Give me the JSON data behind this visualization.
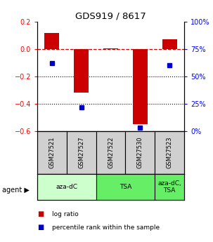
{
  "title": "GDS919 / 8617",
  "samples": [
    "GSM27521",
    "GSM27527",
    "GSM27522",
    "GSM27530",
    "GSM27523"
  ],
  "log_ratios": [
    0.12,
    -0.32,
    0.003,
    -0.55,
    0.07
  ],
  "percentile_rank_values": [
    0.62,
    0.22,
    null,
    0.03,
    0.6
  ],
  "left_ylim": [
    -0.6,
    0.2
  ],
  "right_ylim": [
    0,
    100
  ],
  "left_yticks": [
    -0.6,
    -0.4,
    -0.2,
    0.0,
    0.2
  ],
  "right_yticks": [
    0,
    25,
    50,
    75,
    100
  ],
  "bar_color": "#cc0000",
  "dot_color": "#0000cc",
  "dashed_line_color": "#cc0000",
  "dotted_line_color": "#000000",
  "grid_dotted_values": [
    -0.2,
    -0.4
  ],
  "bar_width": 0.5,
  "sample_bg_color": "#d0d0d0",
  "agent_defs": [
    {
      "label": "aza-dC",
      "start": 0,
      "end": 2,
      "color": "#ccffcc"
    },
    {
      "label": "TSA",
      "start": 2,
      "end": 4,
      "color": "#66ee66"
    },
    {
      "label": "aza-dC,\nTSA",
      "start": 4,
      "end": 5,
      "color": "#66ee66"
    }
  ]
}
